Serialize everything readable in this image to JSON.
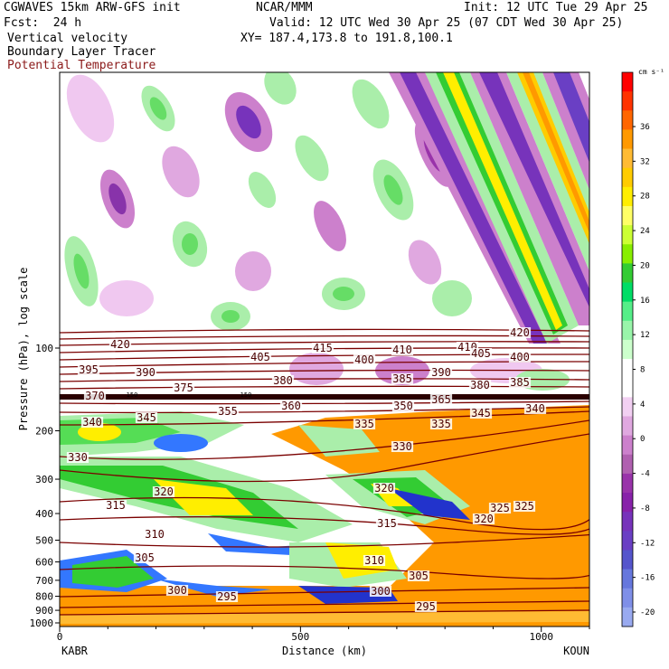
{
  "header": {
    "model": "CGWAVES 15km ARW-GFS init",
    "org": "NCAR/MMM",
    "init": "Init: 12 UTC Tue 29 Apr 25",
    "fcst": "Fcst:  24 h",
    "valid": "Valid: 12 UTC Wed 30 Apr 25 (07 CDT Wed 30 Apr 25)",
    "field1": "Vertical velocity",
    "field2": "Boundary Layer Tracer",
    "field3": "Potential Temperature",
    "xy": "XY= 187.4,173.8 to 191.8,100.1",
    "field3_color": "#8b1a1a"
  },
  "chart_data": {
    "type": "heatmap",
    "title": "CGWAVES 15km ARW-GFS init",
    "xlabel": "Distance (km)",
    "ylabel": "Pressure (hPa), log scale",
    "x_ticks": [
      "0",
      "500",
      "1000"
    ],
    "x_tick_values": [
      0,
      500,
      1000
    ],
    "xlim": [
      0,
      1100
    ],
    "y_ticks": [
      "100",
      "200",
      "300",
      "400",
      "500",
      "600",
      "700",
      "800",
      "900",
      "1000"
    ],
    "y_tick_values": [
      100,
      200,
      300,
      400,
      500,
      600,
      700,
      800,
      900,
      1000
    ],
    "y_scale": "log",
    "endpoints": {
      "left": "KABR",
      "right": "KOUN"
    },
    "colorbar": {
      "unit": "cm s⁻¹",
      "labels": [
        "36",
        "32",
        "28",
        "24",
        "20",
        "16",
        "12",
        "8",
        "4",
        "0",
        "-4",
        "-8",
        "-12",
        "-16",
        "-20"
      ],
      "colors": [
        "#ff0000",
        "#ff3300",
        "#ff6600",
        "#ff9900",
        "#ffbb33",
        "#ffcc00",
        "#ffee00",
        "#ffff66",
        "#ccff33",
        "#88ee00",
        "#33cc33",
        "#00dd66",
        "#55ee88",
        "#99f5aa",
        "#ccffcc",
        "#ffffff",
        "#ffffff",
        "#f2d0f2",
        "#e0a8e0",
        "#cc80cc",
        "#b060b0",
        "#9933aa",
        "#8822aa",
        "#7733bb",
        "#6a3fc4",
        "#5555cc",
        "#6677dd",
        "#7f8fe8",
        "#99aaf0"
      ]
    },
    "theta_labels": [
      {
        "v": "420"
      },
      {
        "v": "395"
      },
      {
        "v": "390"
      },
      {
        "v": "405"
      },
      {
        "v": "415"
      },
      {
        "v": "410"
      },
      {
        "v": "410"
      },
      {
        "v": "405"
      },
      {
        "v": "420"
      },
      {
        "v": "400"
      },
      {
        "v": "400"
      },
      {
        "v": "380"
      },
      {
        "v": "385"
      },
      {
        "v": "390"
      },
      {
        "v": "380"
      },
      {
        "v": "385"
      },
      {
        "v": "375"
      },
      {
        "v": "370"
      },
      {
        "v": "360"
      },
      {
        "v": "355"
      },
      {
        "v": "365"
      },
      {
        "v": "350"
      },
      {
        "v": "345"
      },
      {
        "v": "340"
      },
      {
        "v": "340"
      },
      {
        "v": "345"
      },
      {
        "v": "335"
      },
      {
        "v": "335"
      },
      {
        "v": "330"
      },
      {
        "v": "330"
      },
      {
        "v": "320"
      },
      {
        "v": "325"
      },
      {
        "v": "320"
      },
      {
        "v": "325"
      },
      {
        "v": "315"
      },
      {
        "v": "315"
      },
      {
        "v": "320"
      },
      {
        "v": "310"
      },
      {
        "v": "310"
      },
      {
        "v": "305"
      },
      {
        "v": "305"
      },
      {
        "v": "300"
      },
      {
        "v": "300"
      },
      {
        "v": "295"
      },
      {
        "v": "295"
      }
    ],
    "tracer_labels": [
      "150",
      "150"
    ]
  }
}
